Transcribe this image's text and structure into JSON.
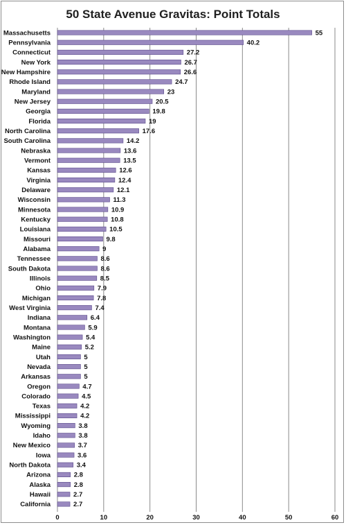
{
  "chart_data": {
    "type": "bar",
    "orientation": "horizontal",
    "title": "50 State Avenue Gravitas: Point Totals",
    "xlabel": "",
    "ylabel": "",
    "xlim": [
      0,
      60
    ],
    "ticks": [
      0,
      10,
      20,
      30,
      40,
      50,
      60
    ],
    "grid": "vertical",
    "legend": "none",
    "bar_color": "#9989bf",
    "bar_edge_color": "#5b4a8a",
    "categories": [
      "Massachusetts",
      "Pennsylvania",
      "Connecticut",
      "New York",
      "New Hampshire",
      "Rhode Island",
      "Maryland",
      "New Jersey",
      "Georgia",
      "Florida",
      "North Carolina",
      "South Carolina",
      "Nebraska",
      "Vermont",
      "Kansas",
      "Virginia",
      "Delaware",
      "Wisconsin",
      "Minnesota",
      "Kentucky",
      "Louisiana",
      "Missouri",
      "Alabama",
      "Tennessee",
      "South Dakota",
      "Illinois",
      "Ohio",
      "Michigan",
      "West Virginia",
      "Indiana",
      "Montana",
      "Washington",
      "Maine",
      "Utah",
      "Nevada",
      "Arkansas",
      "Oregon",
      "Colorado",
      "Texas",
      "Mississippi",
      "Wyoming",
      "Idaho",
      "New Mexico",
      "Iowa",
      "North Dakota",
      "Arizona",
      "Alaska",
      "Hawaii",
      "California"
    ],
    "values": [
      55,
      40.2,
      27.2,
      26.7,
      26.6,
      24.7,
      23,
      20.5,
      19.8,
      19,
      17.6,
      14.2,
      13.6,
      13.5,
      12.6,
      12.4,
      12.1,
      11.3,
      10.9,
      10.8,
      10.5,
      9.8,
      9,
      8.6,
      8.6,
      8.5,
      7.9,
      7.8,
      7.4,
      6.4,
      5.9,
      5.4,
      5.2,
      5,
      5,
      5,
      4.7,
      4.5,
      4.2,
      4.2,
      3.8,
      3.8,
      3.7,
      3.6,
      3.4,
      2.8,
      2.8,
      2.7,
      2.7
    ]
  }
}
